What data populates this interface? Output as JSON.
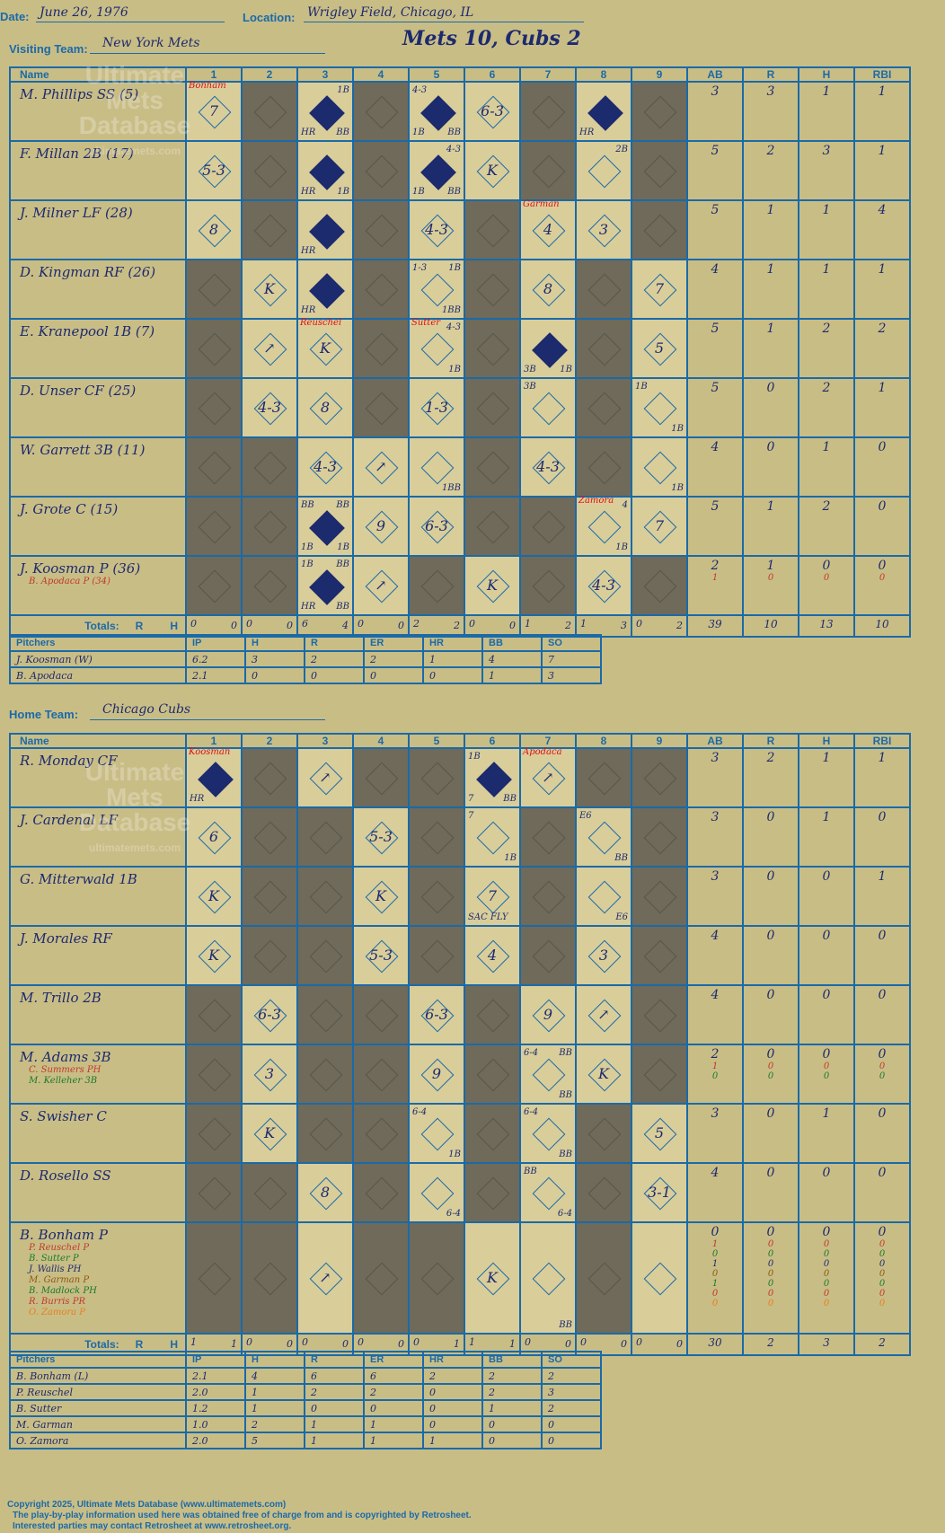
{
  "header": {
    "date_label": "Date:",
    "date": "June 26, 1976",
    "location_label": "Location:",
    "location": "Wrigley Field, Chicago, IL",
    "title": "Mets 10, Cubs 2"
  },
  "visiting": {
    "label": "Visiting Team:",
    "team": "New York Mets"
  },
  "home": {
    "label": "Home Team:",
    "team": "Chicago Cubs"
  },
  "watermark": {
    "line1": "Ultimate",
    "line2": "Mets",
    "line3": "Database",
    "line4": "ultimatemets.com"
  },
  "cols": {
    "name": "Name",
    "innings": [
      "1",
      "2",
      "3",
      "4",
      "5",
      "6",
      "7",
      "8",
      "9"
    ],
    "stats": [
      "AB",
      "R",
      "H",
      "RBI"
    ],
    "totals": "Totals:",
    "r": "R",
    "h": "H"
  },
  "pitch_cols": [
    "Pitchers",
    "IP",
    "H",
    "R",
    "ER",
    "HR",
    "BB",
    "SO"
  ],
  "mets_batters": [
    {
      "name": "M. Phillips SS (5)",
      "subs": [],
      "stats": [
        [
          "3"
        ],
        [
          "3"
        ],
        [
          "1"
        ],
        [
          "1"
        ]
      ]
    },
    {
      "name": "F. Millan 2B (17)",
      "subs": [],
      "stats": [
        [
          "5"
        ],
        [
          "2"
        ],
        [
          "3"
        ],
        [
          "1"
        ]
      ]
    },
    {
      "name": "J. Milner LF (28)",
      "subs": [],
      "stats": [
        [
          "5"
        ],
        [
          "1"
        ],
        [
          "1"
        ],
        [
          "4"
        ]
      ]
    },
    {
      "name": "D. Kingman RF (26)",
      "subs": [],
      "stats": [
        [
          "4"
        ],
        [
          "1"
        ],
        [
          "1"
        ],
        [
          "1"
        ]
      ]
    },
    {
      "name": "E. Kranepool 1B (7)",
      "subs": [],
      "stats": [
        [
          "5"
        ],
        [
          "1"
        ],
        [
          "2"
        ],
        [
          "2"
        ]
      ]
    },
    {
      "name": "D. Unser CF (25)",
      "subs": [],
      "stats": [
        [
          "5"
        ],
        [
          "0"
        ],
        [
          "2"
        ],
        [
          "1"
        ]
      ]
    },
    {
      "name": "W. Garrett 3B (11)",
      "subs": [],
      "stats": [
        [
          "4"
        ],
        [
          "0"
        ],
        [
          "1"
        ],
        [
          "0"
        ]
      ]
    },
    {
      "name": "J. Grote C (15)",
      "subs": [],
      "stats": [
        [
          "5"
        ],
        [
          "1"
        ],
        [
          "2"
        ],
        [
          "0"
        ]
      ]
    },
    {
      "name": "J. Koosman P (36)",
      "subs": [
        "B. Apodaca P (34)"
      ],
      "stats": [
        [
          "2",
          "1"
        ],
        [
          "1",
          "0"
        ],
        [
          "0",
          "0"
        ],
        [
          "0",
          "0"
        ]
      ]
    }
  ],
  "mets_cells": [
    [
      {
        "ann": "Bonham",
        "res": "7"
      },
      {
        "dark": true
      },
      {
        "full": true,
        "tr": "1B",
        "bl": "HR",
        "br": "BB"
      },
      {
        "dark": true
      },
      {
        "full": true,
        "tl": "4-3",
        "bl": "1B",
        "br": "BB"
      },
      {
        "res": "6-3"
      },
      {
        "dark": true
      },
      {
        "full": true,
        "bl": "HR"
      },
      {
        "dark": true
      }
    ],
    [
      {
        "res": "5-3"
      },
      {
        "dark": true
      },
      {
        "full": true,
        "bl": "HR",
        "br": "1B"
      },
      {
        "dark": true
      },
      {
        "full": true,
        "tr": "4-3",
        "bl": "1B",
        "br": "BB"
      },
      {
        "res": "K"
      },
      {
        "dark": true
      },
      {
        "tr": "2B"
      },
      {
        "dark": true
      }
    ],
    [
      {
        "res": "8"
      },
      {
        "dark": true
      },
      {
        "full": true,
        "bl": "HR"
      },
      {
        "dark": true
      },
      {
        "res": "4-3"
      },
      {
        "dark": true
      },
      {
        "ann": "Garman",
        "res": "4"
      },
      {
        "res": "3"
      },
      {
        "dark": true
      }
    ],
    [
      {
        "dark": true
      },
      {
        "res": "K"
      },
      {
        "full": true,
        "bl": "HR"
      },
      {
        "dark": true
      },
      {
        "tl": "1-3",
        "tr": "1B",
        "br": "1BB"
      },
      {
        "dark": true
      },
      {
        "res": "8"
      },
      {
        "dark": true
      },
      {
        "res": "7"
      }
    ],
    [
      {
        "dark": true
      },
      {
        "res": "↗"
      },
      {
        "ann": "Reuschel",
        "res": "K"
      },
      {
        "dark": true
      },
      {
        "ann": "Sutter",
        "tr": "4-3",
        "br": "1B"
      },
      {
        "dark": true
      },
      {
        "full": true,
        "bl": "3B",
        "br": "1B"
      },
      {
        "dark": true
      },
      {
        "res": "5"
      }
    ],
    [
      {
        "dark": true
      },
      {
        "res": "4-3"
      },
      {
        "res": "8"
      },
      {
        "dark": true
      },
      {
        "res": "1-3"
      },
      {
        "dark": true
      },
      {
        "tl": "3B"
      },
      {
        "dark": true
      },
      {
        "tl": "1B",
        "br": "1B"
      }
    ],
    [
      {
        "dark": true
      },
      {
        "dark": true
      },
      {
        "res": "4-3"
      },
      {
        "res": "↗"
      },
      {
        "br": "1BB"
      },
      {
        "dark": true
      },
      {
        "res": "4-3"
      },
      {
        "dark": true
      },
      {
        "br": "1B"
      }
    ],
    [
      {
        "dark": true
      },
      {
        "dark": true
      },
      {
        "full": true,
        "tl": "BB",
        "tr": "BB",
        "bl": "1B",
        "br": "1B"
      },
      {
        "res": "9"
      },
      {
        "res": "6-3"
      },
      {
        "dark": true
      },
      {
        "dark": true
      },
      {
        "ann": "Zamora",
        "tr": "4",
        "br": "1B"
      },
      {
        "res": "7"
      }
    ],
    [
      {
        "dark": true
      },
      {
        "dark": true
      },
      {
        "full": true,
        "tl": "1B",
        "tr": "BB",
        "bl": "HR",
        "br": "BB"
      },
      {
        "res": "↗"
      },
      {
        "dark": true
      },
      {
        "res": "K"
      },
      {
        "dark": true
      },
      {
        "res": "4-3"
      },
      {
        "dark": true
      }
    ]
  ],
  "mets_totals": [
    [
      "0",
      "0"
    ],
    [
      "0",
      "0"
    ],
    [
      "6",
      "4"
    ],
    [
      "0",
      "0"
    ],
    [
      "2",
      "2"
    ],
    [
      "0",
      "0"
    ],
    [
      "1",
      "2"
    ],
    [
      "1",
      "3"
    ],
    [
      "0",
      "2"
    ]
  ],
  "mets_total_stats": [
    "39",
    "10",
    "13",
    "10"
  ],
  "mets_pitchers": [
    [
      "J. Koosman (W)",
      "6.2",
      "3",
      "2",
      "2",
      "1",
      "4",
      "7"
    ],
    [
      "B. Apodaca",
      "2.1",
      "0",
      "0",
      "0",
      "0",
      "1",
      "3"
    ]
  ],
  "cubs_batters": [
    {
      "name": "R. Monday CF",
      "subs": [],
      "stats": [
        [
          "3"
        ],
        [
          "2"
        ],
        [
          "1"
        ],
        [
          "1"
        ]
      ]
    },
    {
      "name": "J. Cardenal LF",
      "subs": [],
      "stats": [
        [
          "3"
        ],
        [
          "0"
        ],
        [
          "1"
        ],
        [
          "0"
        ]
      ]
    },
    {
      "name": "G. Mitterwald 1B",
      "subs": [],
      "stats": [
        [
          "3"
        ],
        [
          "0"
        ],
        [
          "0"
        ],
        [
          "1"
        ]
      ]
    },
    {
      "name": "J. Morales RF",
      "subs": [],
      "stats": [
        [
          "4"
        ],
        [
          "0"
        ],
        [
          "0"
        ],
        [
          "0"
        ]
      ]
    },
    {
      "name": "M. Trillo 2B",
      "subs": [],
      "stats": [
        [
          "4"
        ],
        [
          "0"
        ],
        [
          "0"
        ],
        [
          "0"
        ]
      ]
    },
    {
      "name": "M. Adams 3B",
      "subs": [
        "C. Summers PH",
        "M. Kelleher 3B"
      ],
      "stats": [
        [
          "2",
          "1",
          "0"
        ],
        [
          "0",
          "0",
          "0"
        ],
        [
          "0",
          "0",
          "0"
        ],
        [
          "0",
          "0",
          "0"
        ]
      ]
    },
    {
      "name": "S. Swisher C",
      "subs": [],
      "stats": [
        [
          "3"
        ],
        [
          "0"
        ],
        [
          "1"
        ],
        [
          "0"
        ]
      ]
    },
    {
      "name": "D. Rosello SS",
      "subs": [],
      "stats": [
        [
          "4"
        ],
        [
          "0"
        ],
        [
          "0"
        ],
        [
          "0"
        ]
      ]
    },
    {
      "name": "B. Bonham P",
      "subs": [
        "P. Reuschel P",
        "B. Sutter P",
        "J. Wallis PH",
        "M. Garman P",
        "B. Madlock PH",
        "R. Burris PR",
        "O. Zamora P"
      ],
      "stats": [
        [
          "0",
          "1",
          "0",
          "1",
          "0",
          "1",
          "0",
          "0"
        ],
        [
          "0",
          "0",
          "0",
          "0",
          "0",
          "0",
          "0",
          "0"
        ],
        [
          "0",
          "0",
          "0",
          "0",
          "0",
          "0",
          "0",
          "0"
        ],
        [
          "0",
          "0",
          "0",
          "0",
          "0",
          "0",
          "0",
          "0"
        ]
      ]
    }
  ],
  "cubs_cells": [
    [
      {
        "ann": "Koosman",
        "full": true,
        "bl": "HR"
      },
      {
        "dark": true
      },
      {
        "res": "↗"
      },
      {
        "dark": true
      },
      {
        "dark": true
      },
      {
        "full": true,
        "tl": "1B",
        "bl": "7",
        "br": "BB"
      },
      {
        "ann": "Apodaca",
        "res": "↗"
      },
      {
        "dark": true
      },
      {
        "dark": true
      }
    ],
    [
      {
        "res": "6"
      },
      {
        "dark": true
      },
      {
        "dark": true
      },
      {
        "res": "5-3"
      },
      {
        "dark": true
      },
      {
        "tl": "7",
        "br": "1B"
      },
      {
        "dark": true
      },
      {
        "tl": "E6",
        "br": "BB"
      },
      {
        "dark": true
      }
    ],
    [
      {
        "res": "K"
      },
      {
        "dark": true
      },
      {
        "dark": true
      },
      {
        "res": "K"
      },
      {
        "dark": true
      },
      {
        "res": "7",
        "bl": "SAC FLY"
      },
      {
        "dark": true
      },
      {
        "br": "E6"
      },
      {
        "dark": true
      }
    ],
    [
      {
        "res": "K"
      },
      {
        "dark": true
      },
      {
        "dark": true
      },
      {
        "res": "5-3"
      },
      {
        "dark": true
      },
      {
        "res": "4"
      },
      {
        "dark": true
      },
      {
        "res": "3"
      },
      {
        "dark": true
      }
    ],
    [
      {
        "dark": true
      },
      {
        "res": "6-3"
      },
      {
        "dark": true
      },
      {
        "dark": true
      },
      {
        "res": "6-3"
      },
      {
        "dark": true
      },
      {
        "res": "9"
      },
      {
        "res": "↗"
      },
      {
        "dark": true
      }
    ],
    [
      {
        "dark": true
      },
      {
        "res": "3"
      },
      {
        "dark": true
      },
      {
        "dark": true
      },
      {
        "res": "9"
      },
      {
        "dark": true
      },
      {
        "tl": "6-4",
        "tr": "BB",
        "br": "BB"
      },
      {
        "res": "K"
      },
      {
        "dark": true
      }
    ],
    [
      {
        "dark": true
      },
      {
        "res": "K"
      },
      {
        "dark": true
      },
      {
        "dark": true
      },
      {
        "tl": "6-4",
        "br": "1B"
      },
      {
        "dark": true
      },
      {
        "tl": "6-4",
        "br": "BB"
      },
      {
        "dark": true
      },
      {
        "res": "5"
      }
    ],
    [
      {
        "dark": true
      },
      {
        "dark": true
      },
      {
        "res": "8"
      },
      {
        "dark": true
      },
      {
        "br": "6-4"
      },
      {
        "dark": true
      },
      {
        "tl": "BB",
        "br": "6-4"
      },
      {
        "dark": true
      },
      {
        "res": "3-1"
      }
    ],
    [
      {
        "dark": true
      },
      {
        "dark": true
      },
      {
        "res": "↗"
      },
      {
        "dark": true
      },
      {
        "dark": true
      },
      {
        "res": "K"
      },
      {
        "br": "BB"
      },
      {
        "dark": true
      },
      {
        "res": ""
      }
    ]
  ],
  "cubs_totals": [
    [
      "1",
      "1"
    ],
    [
      "0",
      "0"
    ],
    [
      "0",
      "0"
    ],
    [
      "0",
      "0"
    ],
    [
      "0",
      "1"
    ],
    [
      "1",
      "1"
    ],
    [
      "0",
      "0"
    ],
    [
      "0",
      "0"
    ],
    [
      "0",
      "0"
    ]
  ],
  "cubs_total_stats": [
    "30",
    "2",
    "3",
    "2"
  ],
  "cubs_pitchers": [
    [
      "B. Bonham (L)",
      "2.1",
      "4",
      "6",
      "6",
      "2",
      "2",
      "2"
    ],
    [
      "P. Reuschel",
      "2.0",
      "1",
      "2",
      "2",
      "0",
      "2",
      "3"
    ],
    [
      "B. Sutter",
      "1.2",
      "1",
      "0",
      "0",
      "0",
      "1",
      "2"
    ],
    [
      "M. Garman",
      "1.0",
      "2",
      "1",
      "1",
      "0",
      "0",
      "0"
    ],
    [
      "O. Zamora",
      "2.0",
      "5",
      "1",
      "1",
      "1",
      "0",
      "0"
    ]
  ],
  "footer": {
    "line1": "Copyright 2025, Ultimate Mets Database (www.ultimatemets.com)",
    "line2": "The play-by-play information used here was obtained free of charge from and is copyrighted by Retrosheet.",
    "line3": "Interested parties may contact Retrosheet at www.retrosheet.org."
  }
}
